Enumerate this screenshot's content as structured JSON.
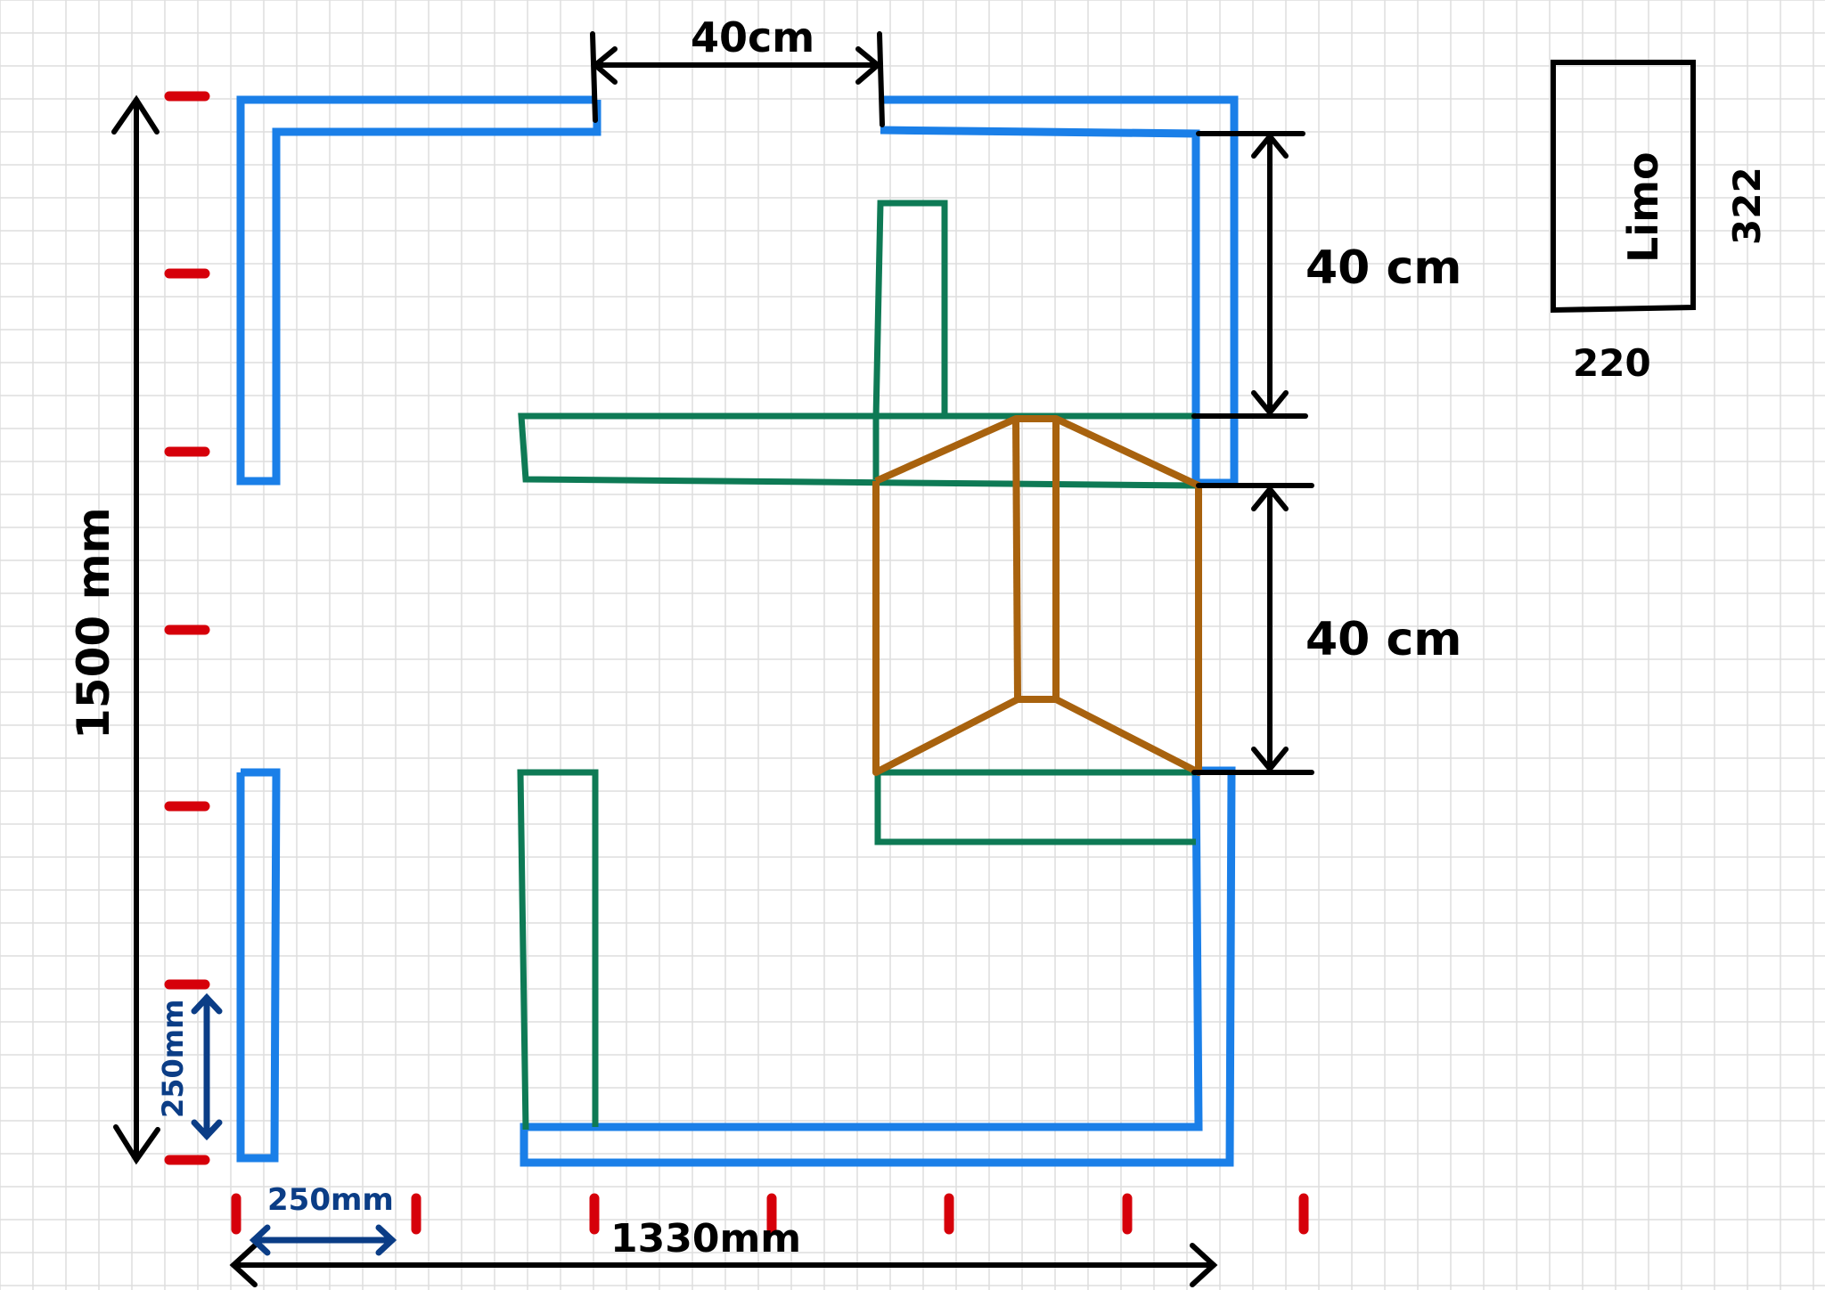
{
  "colors": {
    "grid": "#dedede",
    "outer_track": "#1a7fe8",
    "inner_walls": "#0e7a55",
    "ramp": "#a8620e",
    "dimension": "#000000",
    "tick": "#d6000a",
    "scale": "#0b3d86"
  },
  "labels": {
    "top_gap": "40cm",
    "right_upper": "40 cm",
    "right_lower": "40 cm",
    "height": "1500 mm",
    "width": "1330mm",
    "scale_h": "250mm",
    "scale_v": "250mm",
    "limo_name": "Limo",
    "limo_width": "220",
    "limo_length": "322"
  }
}
